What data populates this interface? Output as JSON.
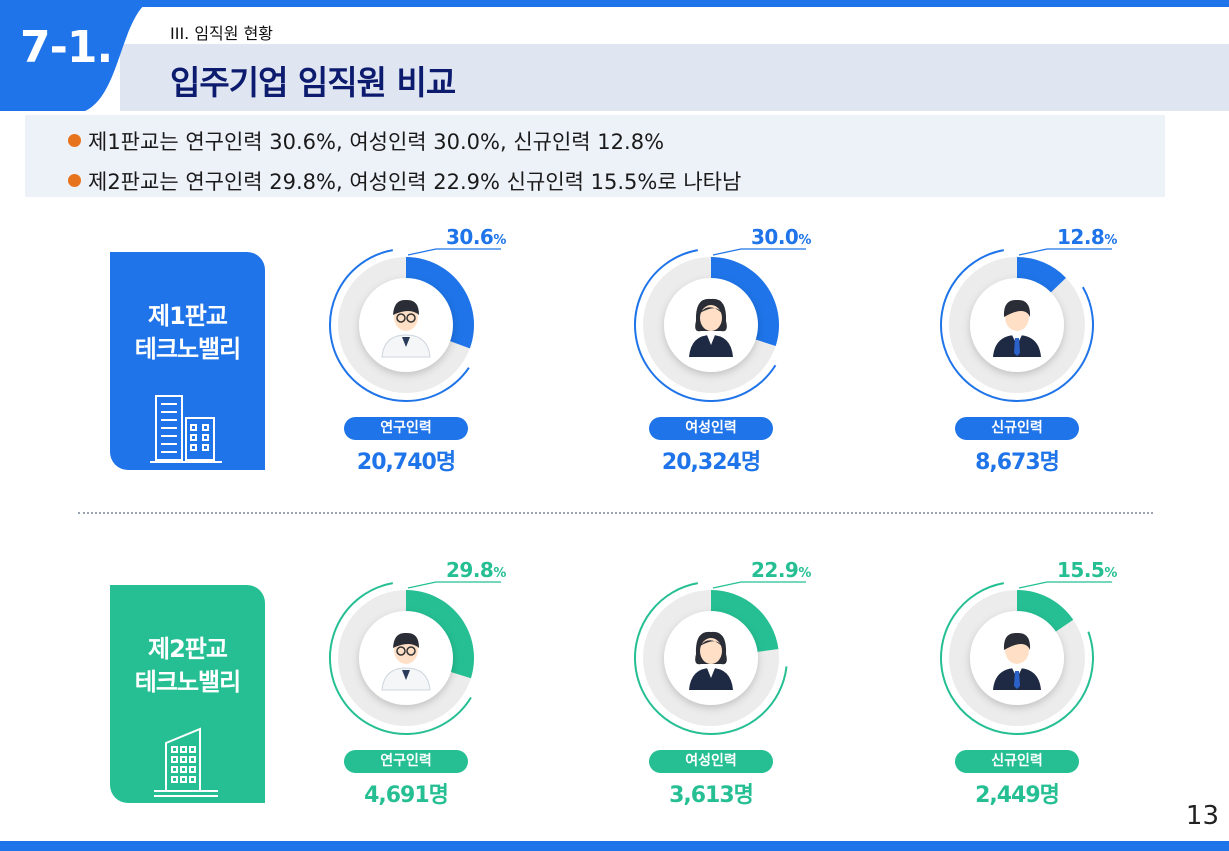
{
  "header": {
    "section_no": "7-1.",
    "subtitle": "III. 임직원 현황",
    "title": "입주기업 임직원 비교"
  },
  "summary": [
    "제1판교는 연구인력 30.6%, 여성인력 30.0%, 신규인력 12.8%",
    "제2판교는 연구인력 29.8%, 여성인력 22.9% 신규인력 15.5%로 나타남"
  ],
  "parks": [
    {
      "name_line1": "제1판교",
      "name_line2": "테크노밸리",
      "color": "#1e74e8",
      "items": [
        {
          "pct_num": "30.6",
          "pct_unit": "%",
          "value": 30.6,
          "label": "연구인력",
          "count": "20,740명",
          "person": "researcher"
        },
        {
          "pct_num": "30.0",
          "pct_unit": "%",
          "value": 30.0,
          "label": "여성인력",
          "count": "20,324명",
          "person": "woman"
        },
        {
          "pct_num": "12.8",
          "pct_unit": "%",
          "value": 12.8,
          "label": "신규인력",
          "count": "8,673명",
          "person": "man-suit"
        }
      ]
    },
    {
      "name_line1": "제2판교",
      "name_line2": "테크노밸리",
      "color": "#25bf93",
      "items": [
        {
          "pct_num": "29.8",
          "pct_unit": "%",
          "value": 29.8,
          "label": "연구인력",
          "count": "4,691명",
          "person": "researcher"
        },
        {
          "pct_num": "22.9",
          "pct_unit": "%",
          "value": 22.9,
          "label": "여성인력",
          "count": "3,613명",
          "person": "woman"
        },
        {
          "pct_num": "15.5",
          "pct_unit": "%",
          "value": 15.5,
          "label": "신규인력",
          "count": "2,449명",
          "person": "man-suit"
        }
      ]
    }
  ],
  "page_number": "13"
}
